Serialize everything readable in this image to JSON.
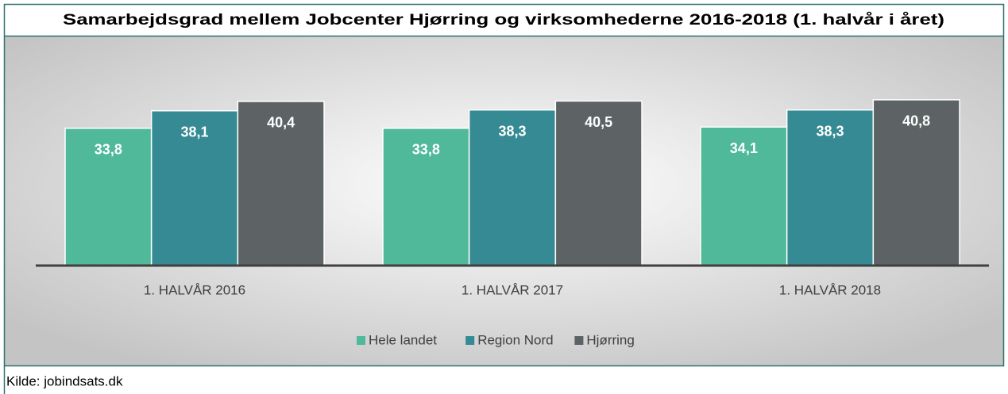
{
  "chart_data": {
    "type": "bar",
    "title": "Samarbejdsgrad mellem Jobcenter Hjørring og virksomhederne 2016-2018 (1. halvår i året)",
    "categories": [
      "1. HALVÅR 2016",
      "1. HALVÅR 2017",
      "1. HALVÅR 2018"
    ],
    "series": [
      {
        "name": "Hele landet",
        "color": "#4fb99a",
        "values": [
          33.8,
          33.8,
          34.1
        ],
        "value_labels": [
          "33,8",
          "33,8",
          "34,1"
        ]
      },
      {
        "name": "Region Nord",
        "color": "#358a93",
        "values": [
          38.1,
          38.3,
          38.3
        ],
        "value_labels": [
          "38,1",
          "38,3",
          "38,3"
        ]
      },
      {
        "name": "Hjørring",
        "color": "#5d6364",
        "values": [
          40.4,
          40.5,
          40.8
        ],
        "value_labels": [
          "40,4",
          "40,5",
          "40,8"
        ]
      }
    ],
    "ylim": [
      0,
      56
    ],
    "legend": "bottom",
    "source": "Kilde: jobindsats.dk"
  }
}
